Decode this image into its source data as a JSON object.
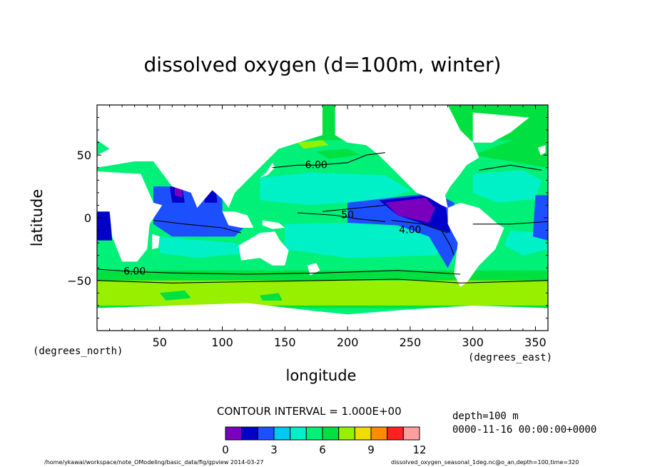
{
  "chart_data": {
    "type": "heatmap",
    "title": "dissolved oxygen (d=100m, winter)",
    "xlabel": "longitude",
    "ylabel": "latitude",
    "x_units": "(degrees_east)",
    "y_units": "(degrees_north)",
    "xlim": [
      0,
      360
    ],
    "ylim": [
      -90,
      90
    ],
    "x_ticks": [
      50,
      100,
      150,
      200,
      250,
      300,
      350
    ],
    "y_ticks": [
      50,
      0,
      -50
    ],
    "contour_labels": [
      {
        "text": "6.00",
        "lon": 175,
        "lat": 42
      },
      {
        "text": "6.00",
        "lon": 30,
        "lat": -43
      },
      {
        "text": "4.00",
        "lon": 250,
        "lat": -10
      },
      {
        "text": "50",
        "lon": 200,
        "lat": 2
      }
    ],
    "contour_interval": "CONTOUR INTERVAL = 1.000E+00",
    "colorbar": {
      "levels": [
        0,
        1,
        2,
        3,
        4,
        5,
        6,
        7,
        8,
        9,
        10,
        11,
        12
      ],
      "tick_labels": [
        "0",
        "3",
        "6",
        "9",
        "12"
      ],
      "colors": [
        "#7a00bd",
        "#0000c8",
        "#1c50ff",
        "#00c8f0",
        "#00f0c8",
        "#00f078",
        "#00e040",
        "#96f000",
        "#f0dc00",
        "#ff8c00",
        "#ff2020",
        "#ff9e9e"
      ]
    },
    "land_color": "#ffffff"
  },
  "meta": {
    "depth": "depth=100  m",
    "time": "0000-11-16 00:00:00+0000"
  },
  "footer": {
    "left": "/home/ykawai/workspace/note_OModeling/basic_data/fig/gpview  2014-03-27",
    "right": "dissolved_oxygen_seasonal_1deg.nc@o_an,depth=100,time=320"
  }
}
